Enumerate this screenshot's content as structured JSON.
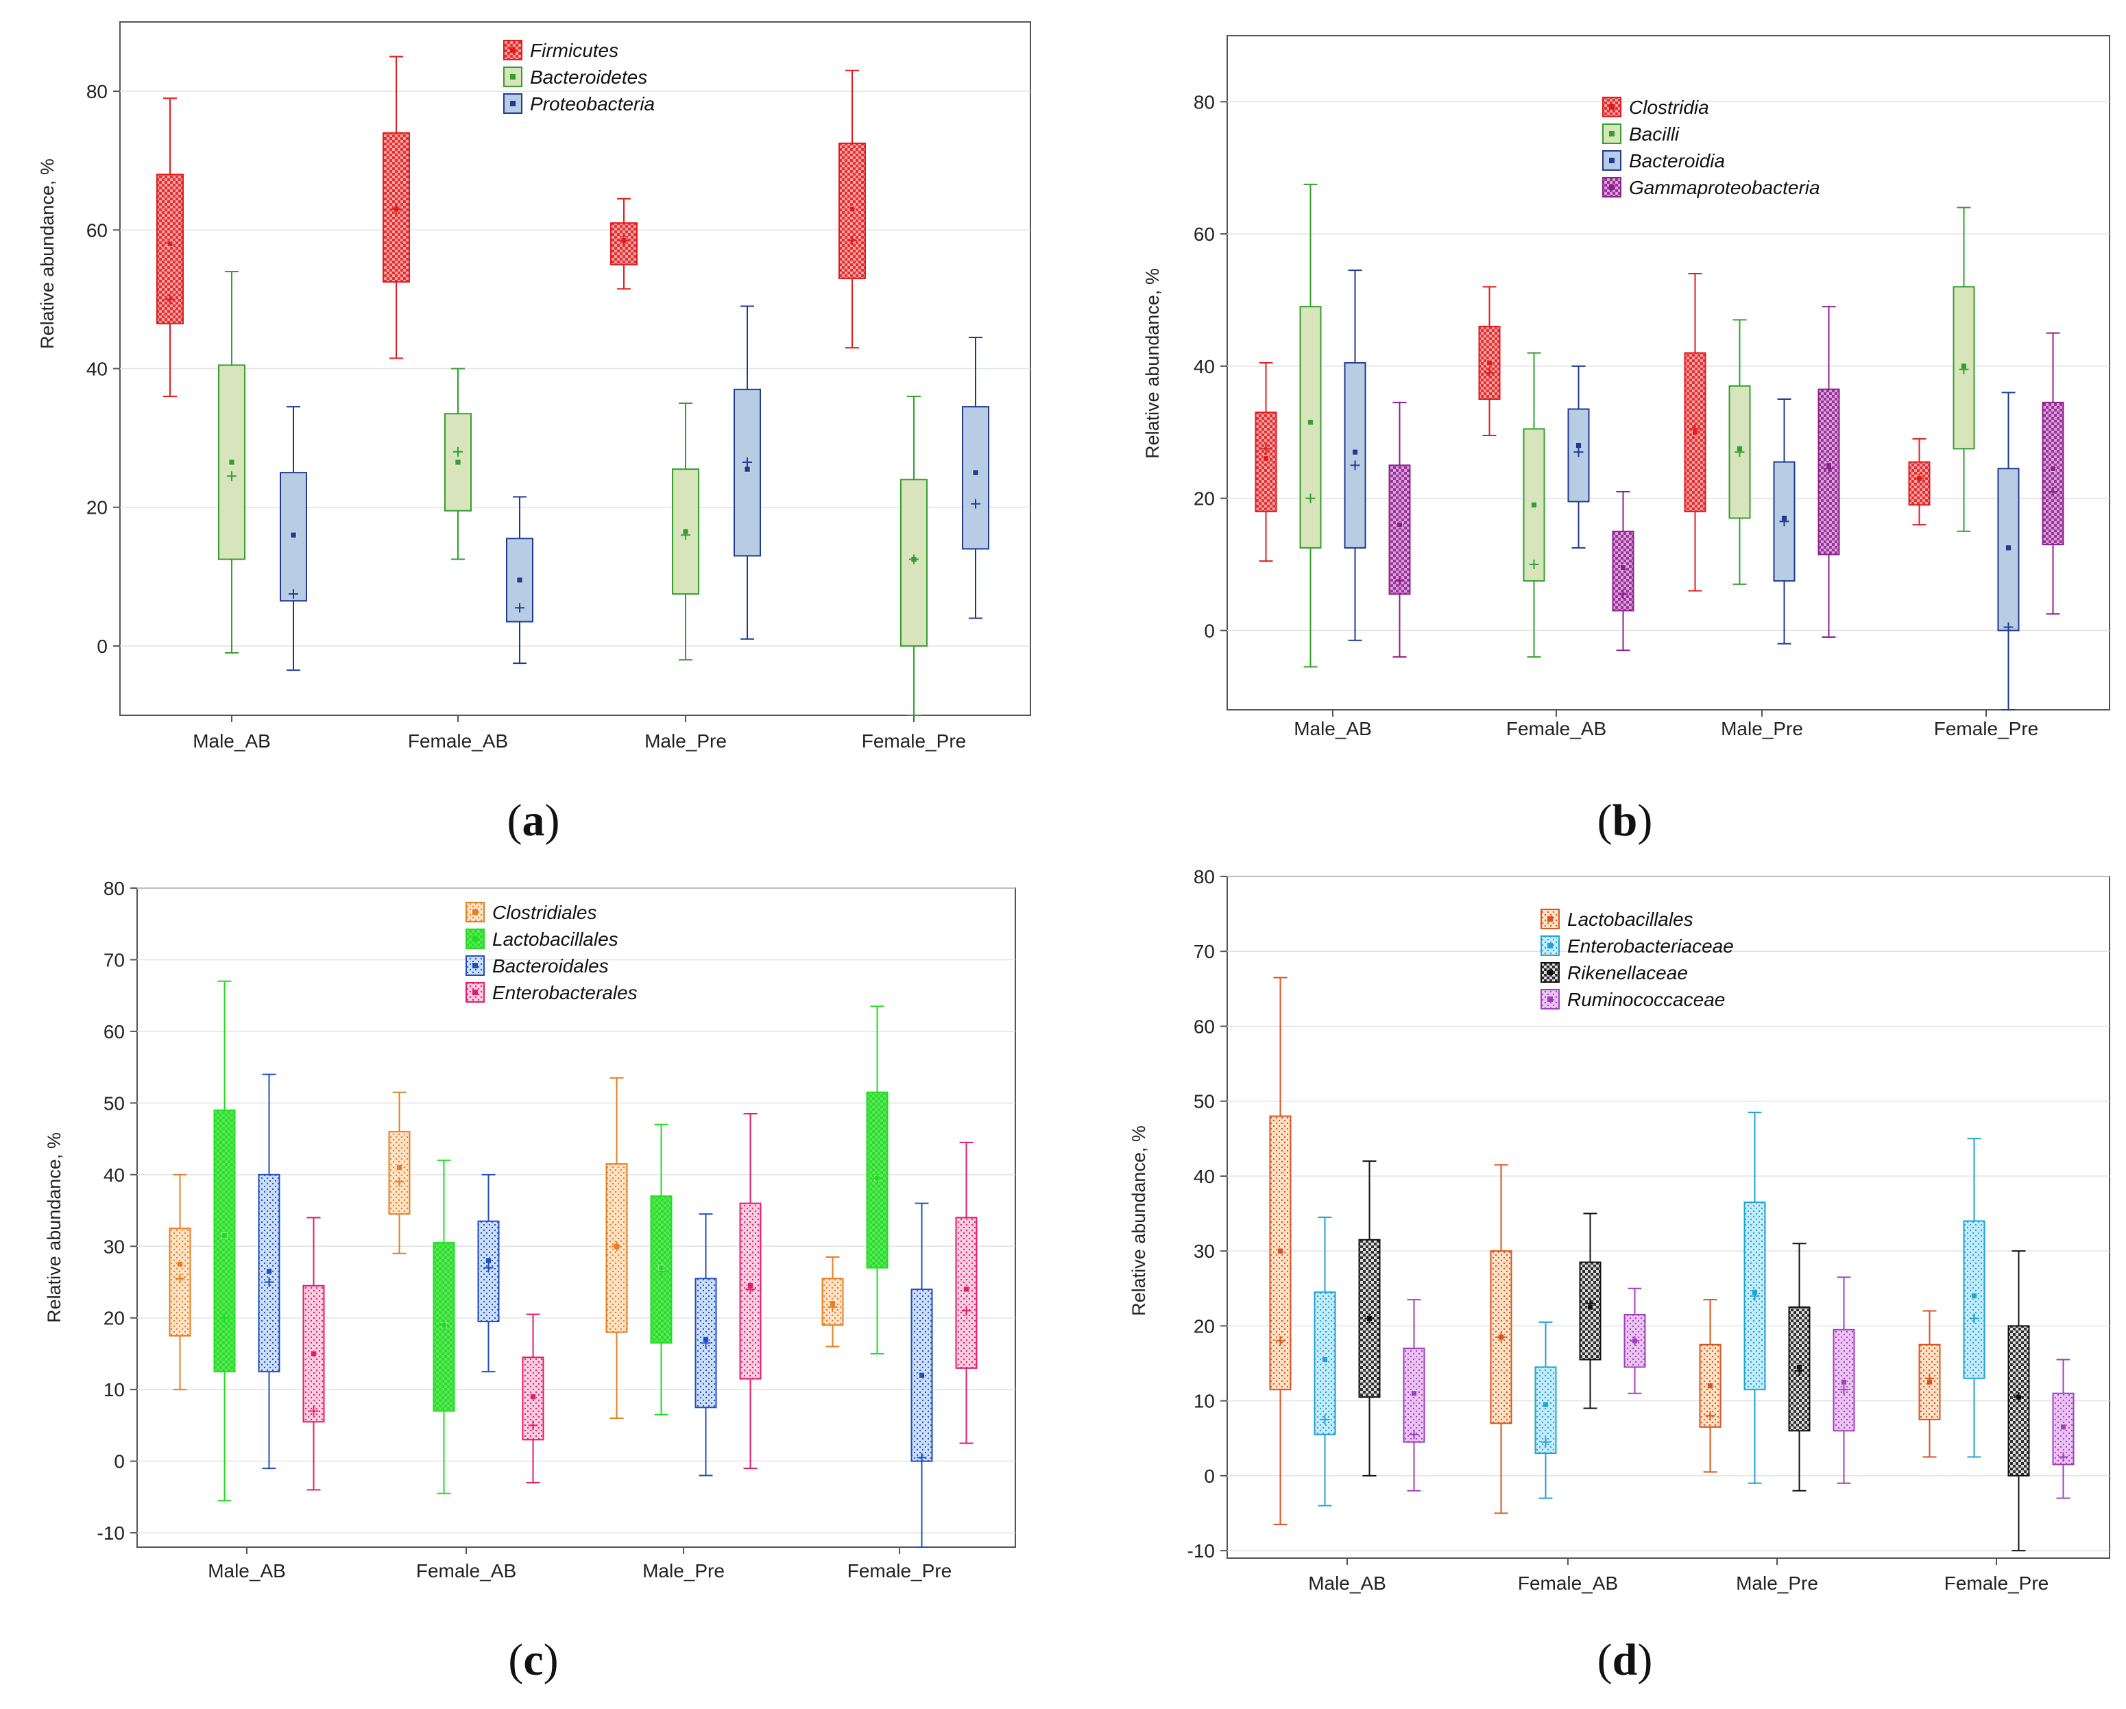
{
  "panels": [
    {
      "letter": "a",
      "ylabel": "Relative abundance, %",
      "categories": [
        "Male_AB",
        "Female_AB",
        "Male_Pre",
        "Female_Pre"
      ],
      "yrange": [
        -10,
        90
      ],
      "yticks": [
        "0",
        "20",
        "40",
        "60",
        "80"
      ]
    },
    {
      "letter": "b",
      "ylabel": "Relative abundance, %",
      "categories": [
        "Male_AB",
        "Female_AB",
        "Male_Pre",
        "Female_Pre"
      ],
      "yrange": [
        -12,
        90
      ],
      "yticks": [
        "0",
        "20",
        "40",
        "60",
        "80"
      ]
    },
    {
      "letter": "c",
      "ylabel": "Relative abundance, %",
      "categories": [
        "Male_AB",
        "Female_AB",
        "Male_Pre",
        "Female_Pre"
      ],
      "yrange": [
        -12,
        80
      ],
      "yticks": [
        "-10",
        "0",
        "10",
        "20",
        "30",
        "40",
        "50",
        "60",
        "70",
        "80"
      ]
    },
    {
      "letter": "d",
      "ylabel": "Relative abundance, %",
      "categories": [
        "Male_AB",
        "Female_AB",
        "Male_Pre",
        "Female_Pre"
      ],
      "yrange": [
        -11,
        80
      ],
      "yticks": [
        "-10",
        "0",
        "10",
        "20",
        "30",
        "40",
        "50",
        "60",
        "70",
        "80"
      ]
    }
  ],
  "chart_data": [
    {
      "type": "box",
      "categories": [
        "Male_AB",
        "Female_AB",
        "Male_Pre",
        "Female_Pre"
      ],
      "ylabel": "Relative abundance, %",
      "ylim": [
        -10,
        90
      ],
      "legend_position": "top-center",
      "series": [
        {
          "name": "Firmicutes",
          "color": "#e41a1c",
          "fill": "#f4a3a3",
          "pattern": "check",
          "boxes": [
            {
              "median": 58,
              "mean": 50,
              "q1": 46.5,
              "q3": 68,
              "min": 36,
              "max": 79
            },
            {
              "median": 63,
              "mean": 63,
              "q1": 52.5,
              "q3": 74,
              "min": 41.5,
              "max": 85
            },
            {
              "median": 58.5,
              "mean": 58.5,
              "q1": 55,
              "q3": 61,
              "min": 51.5,
              "max": 64.5
            },
            {
              "median": 63,
              "mean": 58.5,
              "q1": 53,
              "q3": 72.5,
              "min": 43,
              "max": 83
            }
          ]
        },
        {
          "name": "Bacteroidetes",
          "color": "#33a02c",
          "fill": "#d8e4bc",
          "pattern": "solid",
          "boxes": [
            {
              "median": 26.5,
              "mean": 24.5,
              "q1": 12.5,
              "q3": 40.5,
              "min": -1,
              "max": 54
            },
            {
              "median": 26.5,
              "mean": 28,
              "q1": 19.5,
              "q3": 33.5,
              "min": 12.5,
              "max": 40
            },
            {
              "median": 16.5,
              "mean": 16,
              "q1": 7.5,
              "q3": 25.5,
              "min": -2,
              "max": 35
            },
            {
              "median": 12.5,
              "mean": 12.5,
              "q1": 0,
              "q3": 24,
              "min": -10,
              "max": 36
            }
          ]
        },
        {
          "name": "Proteobacteria",
          "color": "#1f3a93",
          "fill": "#b8cce4",
          "pattern": "solid",
          "boxes": [
            {
              "median": 16,
              "mean": 7.5,
              "q1": 6.5,
              "q3": 25,
              "min": -3.5,
              "max": 34.5
            },
            {
              "median": 9.5,
              "mean": 5.5,
              "q1": 3.5,
              "q3": 15.5,
              "min": -2.5,
              "max": 21.5
            },
            {
              "median": 25.5,
              "mean": 26.5,
              "q1": 13,
              "q3": 37,
              "min": 1,
              "max": 49
            },
            {
              "median": 25,
              "mean": 20.5,
              "q1": 14,
              "q3": 34.5,
              "min": 4,
              "max": 44.5
            }
          ]
        }
      ]
    },
    {
      "type": "box",
      "categories": [
        "Male_AB",
        "Female_AB",
        "Male_Pre",
        "Female_Pre"
      ],
      "ylabel": "Relative abundance, %",
      "ylim": [
        -12,
        90
      ],
      "legend_position": "top-center",
      "series": [
        {
          "name": "Clostridia",
          "color": "#e41a1c",
          "fill": "#f4a3a3",
          "pattern": "check",
          "boxes": [
            {
              "median": 26,
              "mean": 27.5,
              "q1": 18,
              "q3": 33,
              "min": 10.5,
              "max": 40.5
            },
            {
              "median": 40.5,
              "mean": 39,
              "q1": 35,
              "q3": 46,
              "min": 29.5,
              "max": 52
            },
            {
              "median": 30,
              "mean": 30.5,
              "q1": 18,
              "q3": 42,
              "min": 6,
              "max": 54
            },
            {
              "median": 23,
              "mean": 23,
              "q1": 19,
              "q3": 25.5,
              "min": 16,
              "max": 29
            }
          ]
        },
        {
          "name": "Bacilli",
          "color": "#33a02c",
          "fill": "#d8e4bc",
          "pattern": "solid",
          "boxes": [
            {
              "median": 31.5,
              "mean": 20,
              "q1": 12.5,
              "q3": 49,
              "min": -5.5,
              "max": 67.5
            },
            {
              "median": 19,
              "mean": 10,
              "q1": 7.5,
              "q3": 30.5,
              "min": -4,
              "max": 42
            },
            {
              "median": 27.5,
              "mean": 27,
              "q1": 17,
              "q3": 37,
              "min": 7,
              "max": 47
            },
            {
              "median": 40,
              "mean": 39.5,
              "q1": 27.5,
              "q3": 52,
              "min": 15,
              "max": 64
            }
          ]
        },
        {
          "name": "Bacteroidia",
          "color": "#1f3a93",
          "fill": "#b8cce4",
          "pattern": "solid",
          "boxes": [
            {
              "median": 27,
              "mean": 25,
              "q1": 12.5,
              "q3": 40.5,
              "min": -1.5,
              "max": 54.5
            },
            {
              "median": 28,
              "mean": 27,
              "q1": 19.5,
              "q3": 33.5,
              "min": 12.5,
              "max": 40
            },
            {
              "median": 17,
              "mean": 16.5,
              "q1": 7.5,
              "q3": 25.5,
              "min": -2,
              "max": 35
            },
            {
              "median": 12.5,
              "mean": 0.5,
              "q1": 0,
              "q3": 24.5,
              "min": -12,
              "max": 36
            }
          ]
        },
        {
          "name": "Gammaproteobacteria",
          "color": "#8e1f8e",
          "fill": "#d9a3d9",
          "pattern": "check",
          "boxes": [
            {
              "median": 16,
              "mean": 7.5,
              "q1": 5.5,
              "q3": 25,
              "min": -4,
              "max": 34.5
            },
            {
              "median": 9.5,
              "mean": 5.5,
              "q1": 3,
              "q3": 15,
              "min": -3,
              "max": 21
            },
            {
              "median": 25,
              "mean": 24.5,
              "q1": 11.5,
              "q3": 36.5,
              "min": -1,
              "max": 49
            },
            {
              "median": 24.5,
              "mean": 21,
              "q1": 13,
              "q3": 34.5,
              "min": 2.5,
              "max": 45
            }
          ]
        }
      ]
    },
    {
      "type": "box",
      "categories": [
        "Male_AB",
        "Female_AB",
        "Male_Pre",
        "Female_Pre"
      ],
      "ylabel": "Relative abundance, %",
      "ylim": [
        -12,
        80
      ],
      "legend_position": "top-center",
      "series": [
        {
          "name": "Clostridiales",
          "color": "#e67e22",
          "fill": "#fde3c8",
          "pattern": "dots",
          "boxes": [
            {
              "median": 27.5,
              "mean": 25.5,
              "q1": 17.5,
              "q3": 32.5,
              "min": 10,
              "max": 40
            },
            {
              "median": 41,
              "mean": 39,
              "q1": 34.5,
              "q3": 46,
              "min": 29,
              "max": 51.5
            },
            {
              "median": 30,
              "mean": 30,
              "q1": 18,
              "q3": 41.5,
              "min": 6,
              "max": 53.5
            },
            {
              "median": 22,
              "mean": 21.5,
              "q1": 19,
              "q3": 25.5,
              "min": 16,
              "max": 28.5
            }
          ]
        },
        {
          "name": "Lactobacillales",
          "color": "#22dd22",
          "fill": "#5be65b",
          "pattern": "check",
          "boxes": [
            {
              "median": 31.5,
              "mean": 20,
              "q1": 12.5,
              "q3": 49,
              "min": -5.5,
              "max": 67
            },
            {
              "median": 19,
              "mean": 19,
              "q1": 7,
              "q3": 30.5,
              "min": -4.5,
              "max": 42
            },
            {
              "median": 27,
              "mean": 26.5,
              "q1": 16.5,
              "q3": 37,
              "min": 6.5,
              "max": 47
            },
            {
              "median": 39.5,
              "mean": 39.5,
              "q1": 27,
              "q3": 51.5,
              "min": 15,
              "max": 63.5
            }
          ]
        },
        {
          "name": "Bacteroidales",
          "color": "#1f4fbf",
          "fill": "#cfe0ff",
          "pattern": "dots",
          "boxes": [
            {
              "median": 26.5,
              "mean": 25,
              "q1": 12.5,
              "q3": 40,
              "min": -1,
              "max": 54
            },
            {
              "median": 28,
              "mean": 27,
              "q1": 19.5,
              "q3": 33.5,
              "min": 12.5,
              "max": 40
            },
            {
              "median": 17,
              "mean": 16.5,
              "q1": 7.5,
              "q3": 25.5,
              "min": -2,
              "max": 34.5
            },
            {
              "median": 12,
              "mean": 0.5,
              "q1": 0,
              "q3": 24,
              "min": -12,
              "max": 36
            }
          ]
        },
        {
          "name": "Enterobacterales",
          "color": "#e6196b",
          "fill": "#fbd0e1",
          "pattern": "dots",
          "boxes": [
            {
              "median": 15,
              "mean": 7,
              "q1": 5.5,
              "q3": 24.5,
              "min": -4,
              "max": 34
            },
            {
              "median": 9,
              "mean": 5,
              "q1": 3,
              "q3": 14.5,
              "min": -3,
              "max": 20.5
            },
            {
              "median": 24.5,
              "mean": 24,
              "q1": 11.5,
              "q3": 36,
              "min": -1,
              "max": 48.5
            },
            {
              "median": 24,
              "mean": 21,
              "q1": 13,
              "q3": 34,
              "min": 2.5,
              "max": 44.5
            }
          ]
        }
      ]
    },
    {
      "type": "box",
      "categories": [
        "Male_AB",
        "Female_AB",
        "Male_Pre",
        "Female_Pre"
      ],
      "ylabel": "Relative abundance, %",
      "ylim": [
        -11,
        80
      ],
      "legend_position": "top-center",
      "series": [
        {
          "name": "Lactobacillales",
          "color": "#d9531e",
          "fill": "#fde3c8",
          "pattern": "dots",
          "boxes": [
            {
              "median": 30,
              "mean": 18,
              "q1": 11.5,
              "q3": 48,
              "min": -6.5,
              "max": 66.5
            },
            {
              "median": 18.5,
              "mean": 18.5,
              "q1": 7,
              "q3": 30,
              "min": -5,
              "max": 41.5
            },
            {
              "median": 12,
              "mean": 8,
              "q1": 6.5,
              "q3": 17.5,
              "min": 0.5,
              "max": 23.5
            },
            {
              "median": 12.5,
              "mean": 13,
              "q1": 7.5,
              "q3": 17.5,
              "min": 2.5,
              "max": 22
            }
          ]
        },
        {
          "name": "Enterobacteriaceae",
          "color": "#1fa3d9",
          "fill": "#c6ecfb",
          "pattern": "dots",
          "boxes": [
            {
              "median": 15.5,
              "mean": 7.5,
              "q1": 5.5,
              "q3": 24.5,
              "min": -4,
              "max": 34.5
            },
            {
              "median": 9.5,
              "mean": 4.5,
              "q1": 3,
              "q3": 14.5,
              "min": -3,
              "max": 20.5
            },
            {
              "median": 24.5,
              "mean": 24,
              "q1": 11.5,
              "q3": 36.5,
              "min": -1,
              "max": 48.5
            },
            {
              "median": 24,
              "mean": 21,
              "q1": 13,
              "q3": 34,
              "min": 2.5,
              "max": 45
            }
          ]
        },
        {
          "name": "Rikenellaceae",
          "color": "#111111",
          "fill": "#dddddd",
          "pattern": "check",
          "boxes": [
            {
              "median": 21,
              "mean": 21,
              "q1": 10.5,
              "q3": 31.5,
              "min": 0,
              "max": 42
            },
            {
              "median": 22.5,
              "mean": 23,
              "q1": 15.5,
              "q3": 28.5,
              "min": 9,
              "max": 35
            },
            {
              "median": 14.5,
              "mean": 14,
              "q1": 6,
              "q3": 22.5,
              "min": -2,
              "max": 31
            },
            {
              "median": 10.5,
              "mean": 10.5,
              "q1": 0,
              "q3": 20,
              "min": -10,
              "max": 30
            }
          ]
        },
        {
          "name": "Ruminococcaceae",
          "color": "#a33fbf",
          "fill": "#ebc6f3",
          "pattern": "dots",
          "boxes": [
            {
              "median": 11,
              "mean": 5.5,
              "q1": 4.5,
              "q3": 17,
              "min": -2,
              "max": 23.5
            },
            {
              "median": 18,
              "mean": 18,
              "q1": 14.5,
              "q3": 21.5,
              "min": 11,
              "max": 25
            },
            {
              "median": 12.5,
              "mean": 11.5,
              "q1": 6,
              "q3": 19.5,
              "min": -1,
              "max": 26.5
            },
            {
              "median": 6.5,
              "mean": 2.5,
              "q1": 1.5,
              "q3": 11,
              "min": -3,
              "max": 15.5
            }
          ]
        }
      ]
    }
  ]
}
